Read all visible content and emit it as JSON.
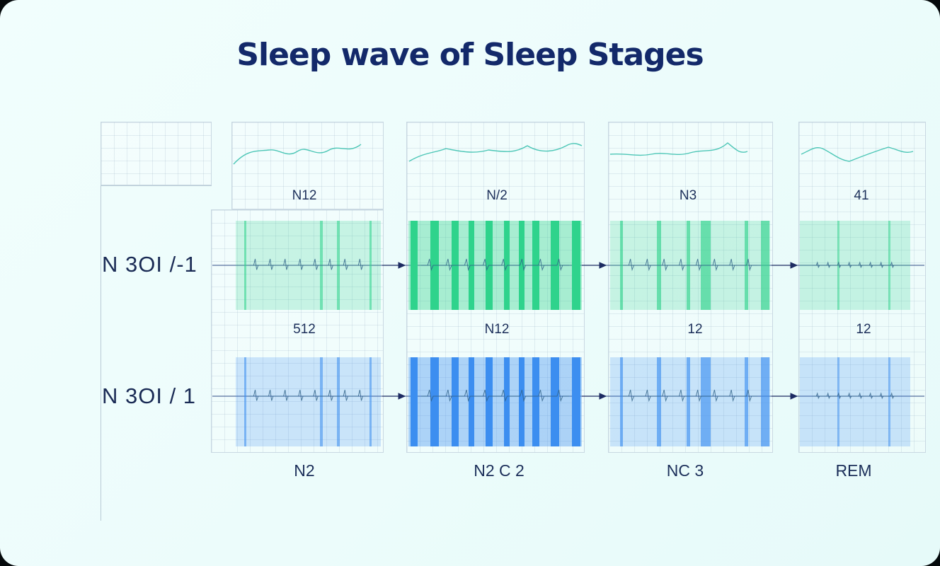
{
  "title": "Sleep wave of Sleep Stages",
  "row_labels": [
    "N 3OI /-1",
    "N 3OI / 1"
  ],
  "top_labels": [
    "N12",
    "N/2",
    "N3",
    "41"
  ],
  "mid_labels": [
    "512",
    "N12",
    "12",
    "12"
  ],
  "stage_labels": [
    "N2",
    "N2 C 2",
    "NC 3",
    "REM"
  ],
  "colors": {
    "title": "#13296a",
    "green": "#2fd38c",
    "blue": "#3c8ef0",
    "trace": "#4cc6b6",
    "arrow": "#1d2b62"
  }
}
